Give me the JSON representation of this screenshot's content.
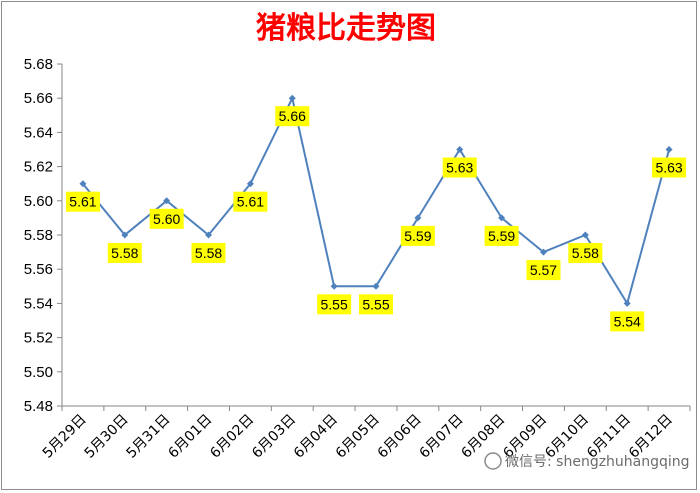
{
  "chart_data": {
    "type": "line",
    "title": "猪粮比走势图",
    "xlabel": "",
    "ylabel": "",
    "categories": [
      "5月29日",
      "5月30日",
      "5月31日",
      "6月01日",
      "6月02日",
      "6月03日",
      "6月04日",
      "6月05日",
      "6月06日",
      "6月07日",
      "6月08日",
      "6月09日",
      "6月10日",
      "6月11日",
      "6月12日"
    ],
    "series": [
      {
        "values": [
          5.61,
          5.58,
          5.6,
          5.58,
          5.61,
          5.66,
          5.55,
          5.55,
          5.59,
          5.63,
          5.59,
          5.57,
          5.58,
          5.54,
          5.63
        ]
      }
    ],
    "data_labels": [
      "5.61",
      "5.58",
      "5.60",
      "5.58",
      "5.61",
      "5.66",
      "5.55",
      "5.55",
      "5.59",
      "5.63",
      "5.59",
      "5.57",
      "5.58",
      "5.54",
      "5.63"
    ],
    "ylim": [
      5.48,
      5.68
    ],
    "yticks": [
      "5.48",
      "5.50",
      "5.52",
      "5.54",
      "5.56",
      "5.58",
      "5.60",
      "5.62",
      "5.64",
      "5.66",
      "5.68"
    ],
    "grid": false,
    "legend": "none",
    "colors": {
      "line": "#4f81bd",
      "label_bg": "#ffff00",
      "title": "#ff0000"
    }
  },
  "watermark": {
    "text": "微信号: shengzhuhangqing"
  }
}
